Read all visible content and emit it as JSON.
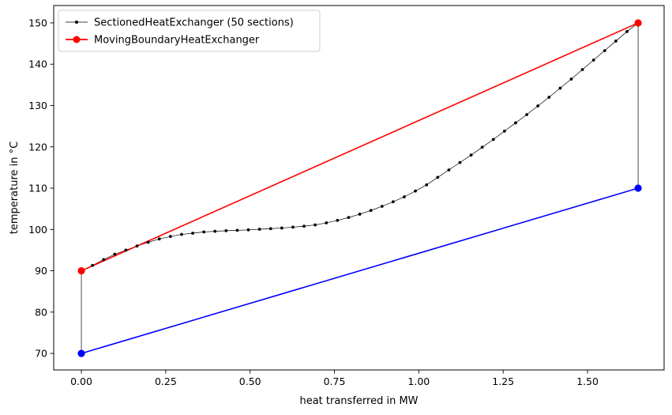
{
  "chart_data": {
    "type": "line",
    "xlabel": "heat transferred in MW",
    "ylabel": "temperature in °C",
    "xlim": [
      -0.082,
      1.727
    ],
    "ylim": [
      66,
      154.2
    ],
    "xticks": [
      0.0,
      0.25,
      0.5,
      0.75,
      1.0,
      1.25,
      1.5
    ],
    "xtick_labels": [
      "0.00",
      "0.25",
      "0.50",
      "0.75",
      "1.00",
      "1.25",
      "1.50"
    ],
    "yticks": [
      70,
      80,
      90,
      100,
      110,
      120,
      130,
      140,
      150
    ],
    "ytick_labels": [
      "70",
      "80",
      "90",
      "100",
      "110",
      "120",
      "130",
      "140",
      "150"
    ],
    "grid": false,
    "legend_position": "top-left",
    "series": [
      {
        "name": "SectionedHeatExchanger (50 sections)",
        "color": "#000000",
        "marker": "small-dot",
        "in_legend": true,
        "x": [
          0.0,
          0.033,
          0.066,
          0.099,
          0.132,
          0.165,
          0.198,
          0.231,
          0.264,
          0.297,
          0.33,
          0.363,
          0.396,
          0.429,
          0.462,
          0.495,
          0.528,
          0.561,
          0.594,
          0.627,
          0.66,
          0.693,
          0.726,
          0.759,
          0.792,
          0.825,
          0.858,
          0.891,
          0.924,
          0.957,
          0.99,
          1.023,
          1.056,
          1.089,
          1.122,
          1.155,
          1.188,
          1.221,
          1.254,
          1.287,
          1.32,
          1.353,
          1.386,
          1.419,
          1.452,
          1.485,
          1.518,
          1.551,
          1.584,
          1.617,
          1.65
        ],
        "y": [
          90.0,
          91.3,
          92.7,
          94.0,
          95.0,
          96.0,
          96.9,
          97.7,
          98.3,
          98.8,
          99.1,
          99.4,
          99.55,
          99.7,
          99.8,
          99.9,
          100.05,
          100.2,
          100.35,
          100.55,
          100.8,
          101.1,
          101.6,
          102.2,
          102.9,
          103.7,
          104.6,
          105.6,
          106.7,
          107.9,
          109.3,
          110.8,
          112.6,
          114.4,
          116.2,
          118.0,
          119.9,
          121.8,
          123.8,
          125.8,
          127.8,
          129.9,
          132.0,
          134.2,
          136.4,
          138.7,
          141.0,
          143.3,
          145.6,
          147.9,
          150.0
        ]
      },
      {
        "name": "",
        "color": "#000000",
        "marker": "none",
        "in_legend": false,
        "x": [
          0.0,
          0.0
        ],
        "y": [
          70,
          90
        ]
      },
      {
        "name": "",
        "color": "#000000",
        "marker": "none",
        "in_legend": false,
        "x": [
          1.65,
          1.65
        ],
        "y": [
          110,
          150
        ]
      },
      {
        "name": "MovingBoundaryHeatExchanger",
        "color": "#ff0000",
        "marker": "circle",
        "in_legend": true,
        "x": [
          0.0,
          1.65
        ],
        "y": [
          90,
          150
        ]
      },
      {
        "name": "",
        "color": "#0000ff",
        "marker": "circle",
        "in_legend": false,
        "x": [
          0.0,
          1.65
        ],
        "y": [
          70,
          110
        ]
      }
    ]
  }
}
